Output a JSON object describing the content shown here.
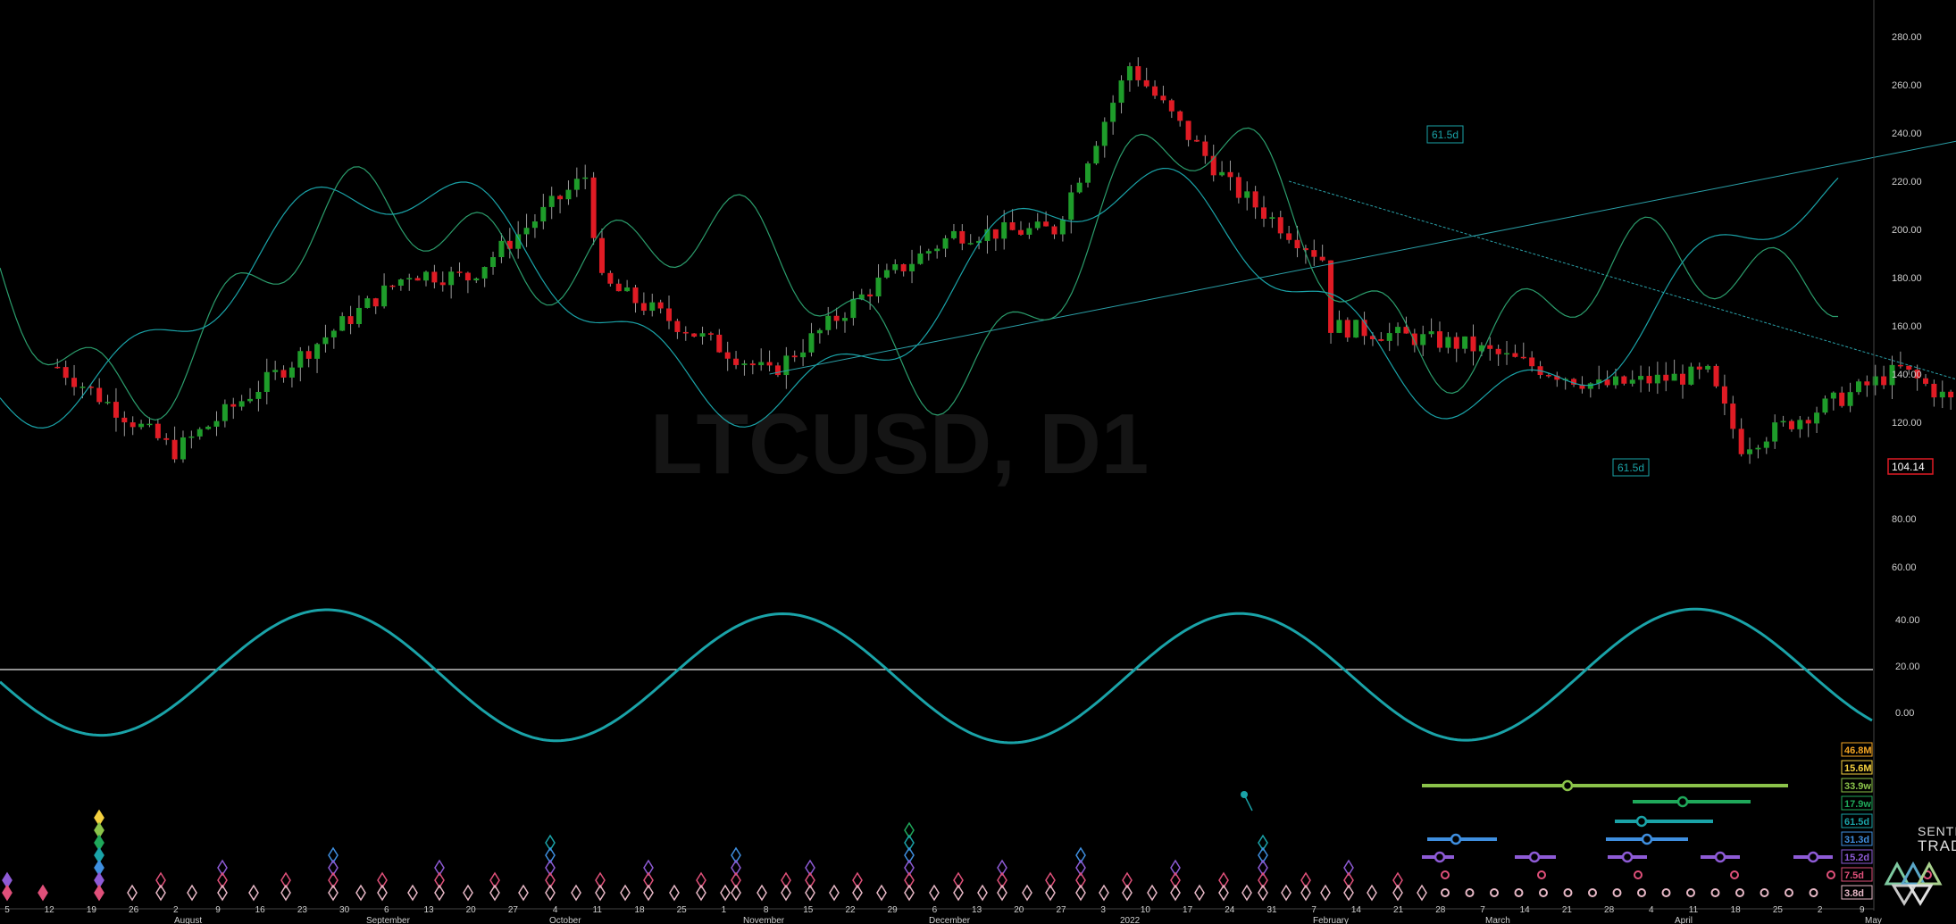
{
  "window": {
    "watermark": "LTCUSD, D1",
    "brand_line1": "SENTIENT",
    "brand_line2": "TRADER"
  },
  "colors": {
    "background": "#000000",
    "up_candle": "#1e9c2a",
    "down_candle": "#e01b24",
    "wick": "#9a9a9a",
    "cycle_line": "#1aa3a8",
    "trend_line": "#2aa0a8",
    "price_tag": "#e01b24"
  },
  "price_panel": {
    "y_ticks": [
      "280.00",
      "260.00",
      "240.00",
      "220.00",
      "200.00",
      "180.00",
      "160.00",
      "140.00",
      "120.00",
      "100.00",
      "80.00",
      "60.00"
    ],
    "last_price": "104.14",
    "trend_label_1": "61.5d",
    "trend_label_2": "61.5d"
  },
  "oscillator_panel": {
    "y_ticks": [
      "40.00",
      "20.00",
      "0.00"
    ]
  },
  "cycle_legend": [
    {
      "label": "46.8M",
      "color": "#f5a623"
    },
    {
      "label": "15.6M",
      "color": "#f4d03f"
    },
    {
      "label": "33.9w",
      "color": "#8bc34a"
    },
    {
      "label": "17.9w",
      "color": "#1fa85a"
    },
    {
      "label": "61.5d",
      "color": "#1aa3a8"
    },
    {
      "label": "31.3d",
      "color": "#3f8fe0"
    },
    {
      "label": "15.2d",
      "color": "#8e5bd6"
    },
    {
      "label": "7.5d",
      "color": "#e0507a"
    },
    {
      "label": "3.8d",
      "color": "#e7b8c6"
    }
  ],
  "x_axis": {
    "day_labels": [
      "5",
      "12",
      "19",
      "26",
      "2",
      "9",
      "16",
      "23",
      "30",
      "6",
      "13",
      "20",
      "27",
      "4",
      "11",
      "18",
      "25",
      "1",
      "8",
      "15",
      "22",
      "29",
      "6",
      "13",
      "20",
      "27",
      "3",
      "10",
      "17",
      "24",
      "31",
      "7",
      "14",
      "21",
      "28",
      "7",
      "14",
      "21",
      "28",
      "4",
      "11",
      "18",
      "25",
      "2",
      "9"
    ],
    "month_labels": [
      "August",
      "September",
      "October",
      "November",
      "December",
      "2022",
      "February",
      "March",
      "April",
      "May"
    ]
  },
  "chart_data": {
    "type": "candlestick",
    "title": "LTCUSD, D1",
    "y_range": [
      50,
      290
    ],
    "x_range_labels": [
      "Jul 5, 2021",
      "May 9, 2022"
    ],
    "approx_closes": [
      {
        "date": "2021-07-05",
        "value": 143
      },
      {
        "date": "2021-07-19",
        "value": 108
      },
      {
        "date": "2021-08-02",
        "value": 145
      },
      {
        "date": "2021-08-16",
        "value": 182
      },
      {
        "date": "2021-08-23",
        "value": 180
      },
      {
        "date": "2021-09-06",
        "value": 222
      },
      {
        "date": "2021-09-08",
        "value": 178
      },
      {
        "date": "2021-09-20",
        "value": 155
      },
      {
        "date": "2021-09-28",
        "value": 140
      },
      {
        "date": "2021-10-11",
        "value": 178
      },
      {
        "date": "2021-10-20",
        "value": 198
      },
      {
        "date": "2021-11-01",
        "value": 200
      },
      {
        "date": "2021-11-10",
        "value": 268
      },
      {
        "date": "2021-11-22",
        "value": 218
      },
      {
        "date": "2021-12-03",
        "value": 188
      },
      {
        "date": "2021-12-04",
        "value": 160
      },
      {
        "date": "2021-12-20",
        "value": 152
      },
      {
        "date": "2022-01-05",
        "value": 135
      },
      {
        "date": "2022-01-18",
        "value": 140
      },
      {
        "date": "2022-01-22",
        "value": 110
      },
      {
        "date": "2022-02-10",
        "value": 142
      },
      {
        "date": "2022-02-20",
        "value": 120
      },
      {
        "date": "2022-02-22",
        "value": 104.14
      }
    ],
    "last_value": 104.14,
    "trendlines": [
      {
        "name": "rising",
        "from": {
          "date": "2021-09-28",
          "value": 140
        },
        "to": {
          "date": "2022-05-06",
          "value": 290
        }
      },
      {
        "name": "falling",
        "from": {
          "date": "2021-11-29",
          "value": 220
        },
        "to": {
          "date": "2022-05-06",
          "value": 57
        }
      }
    ],
    "oscillator": {
      "zero_line": 20,
      "range": [
        -10,
        60
      ]
    },
    "cycle_periods": [
      "46.8M",
      "15.6M",
      "33.9w",
      "17.9w",
      "61.5d",
      "31.3d",
      "15.2d",
      "7.5d",
      "3.8d"
    ]
  }
}
